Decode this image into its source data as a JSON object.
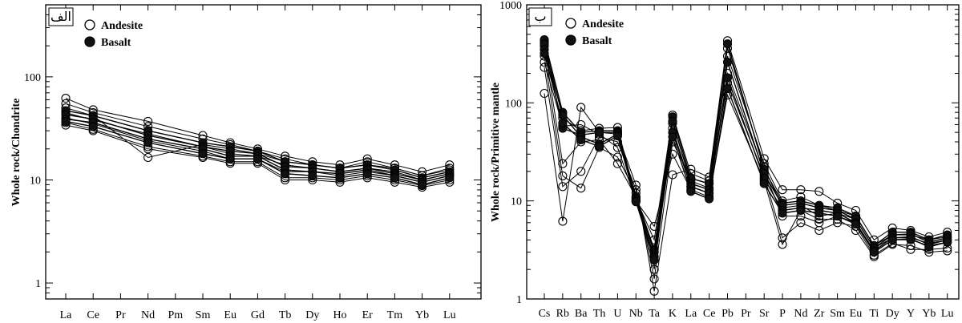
{
  "chart_data": [
    {
      "type": "line",
      "panel_tag": "الف",
      "ylabel": "Whole rock/Chondrite",
      "xlabel": "",
      "y_scale": "log",
      "ylim": [
        0.7,
        500
      ],
      "y_ticks": [
        1,
        10,
        100
      ],
      "y_tick_labels": [
        "1",
        "10",
        "100"
      ],
      "categories": [
        "La",
        "Ce",
        "Pr",
        "Nd",
        "Pm",
        "Sm",
        "Eu",
        "Gd",
        "Tb",
        "Dy",
        "Ho",
        "Er",
        "Tm",
        "Yb",
        "Lu"
      ],
      "legend": [
        {
          "label": "Andesite",
          "marker": "open-circle"
        },
        {
          "label": "Basalt",
          "marker": "filled-circle"
        }
      ],
      "legend_position": "top-left",
      "series": [
        {
          "group": "Andesite",
          "values": [
            62,
            48,
            null,
            37,
            null,
            27,
            23,
            20,
            17,
            15,
            14,
            16,
            14,
            12,
            14
          ]
        },
        {
          "group": "Andesite",
          "values": [
            55,
            45,
            null,
            33,
            null,
            25,
            22,
            19,
            16,
            14,
            13,
            15,
            13,
            11,
            13
          ]
        },
        {
          "group": "Andesite",
          "values": [
            50,
            42,
            null,
            16.5,
            null,
            22,
            20,
            18,
            15,
            14,
            13,
            14,
            13,
            11,
            12.5
          ]
        },
        {
          "group": "Andesite",
          "values": [
            45,
            38,
            null,
            28,
            null,
            21,
            18,
            17,
            14,
            13,
            12,
            13,
            12,
            10,
            11.5
          ]
        },
        {
          "group": "Andesite",
          "values": [
            40,
            35,
            null,
            24,
            null,
            19,
            16,
            16,
            12,
            12,
            11,
            12,
            11,
            9.5,
            11
          ]
        },
        {
          "group": "Andesite",
          "values": [
            36,
            31,
            null,
            21,
            null,
            17,
            15,
            15,
            10.5,
            10.5,
            10,
            11,
            10,
            8.8,
            10
          ]
        },
        {
          "group": "Andesite",
          "values": [
            34,
            30,
            null,
            20,
            null,
            16.5,
            14.5,
            14.5,
            10,
            10,
            9.5,
            10.5,
            9.5,
            8.5,
            9.5
          ]
        },
        {
          "group": "Basalt",
          "values": [
            47,
            42,
            null,
            30,
            null,
            23,
            21,
            19,
            15,
            14,
            13,
            14,
            12.5,
            10.5,
            12
          ]
        },
        {
          "group": "Basalt",
          "values": [
            43,
            39,
            null,
            27,
            null,
            21,
            19,
            18,
            13.5,
            13,
            12,
            13,
            11.5,
            10,
            11.5
          ]
        },
        {
          "group": "Basalt",
          "values": [
            39,
            36,
            null,
            25,
            null,
            20,
            17,
            17,
            12.5,
            12,
            11.5,
            12.5,
            11,
            9.5,
            11
          ]
        },
        {
          "group": "Basalt",
          "values": [
            37,
            33,
            null,
            23,
            null,
            18,
            16,
            16,
            11.5,
            11,
            10.5,
            11.5,
            10.5,
            9,
            10.5
          ]
        }
      ]
    },
    {
      "type": "line",
      "panel_tag": "ب",
      "ylabel": "Whole rock/Primitive mantle",
      "xlabel": "",
      "y_scale": "log",
      "ylim": [
        1,
        1000
      ],
      "y_ticks": [
        1,
        10,
        100,
        1000
      ],
      "y_tick_labels": [
        "1",
        "10",
        "100",
        "1000"
      ],
      "categories": [
        "Cs",
        "Rb",
        "Ba",
        "Th",
        "U",
        "Nb",
        "Ta",
        "K",
        "La",
        "Ce",
        "Pb",
        "Pr",
        "Sr",
        "P",
        "Nd",
        "Zr",
        "Sm",
        "Eu",
        "Ti",
        "Dy",
        "Y",
        "Yb",
        "Lu"
      ],
      "legend": [
        {
          "label": "Andesite",
          "marker": "open-circle"
        },
        {
          "label": "Basalt",
          "marker": "filled-circle"
        }
      ],
      "legend_position": "top-left",
      "series": [
        {
          "group": "Andesite",
          "values": [
            125,
            6.2,
            90,
            50,
            48,
            14.5,
            1.2,
            18.5,
            21,
            17.5,
            430,
            null,
            27,
            13,
            13,
            12.5,
            9.5,
            8,
            4,
            5.3,
            5,
            4.3,
            4.8
          ]
        },
        {
          "group": "Andesite",
          "values": [
            230,
            14,
            20,
            45,
            40,
            13,
            1.6,
            40,
            17,
            15,
            300,
            null,
            24,
            10,
            11,
            9,
            8,
            7,
            3.5,
            4.5,
            4.5,
            4,
            4.3
          ]
        },
        {
          "group": "Andesite",
          "values": [
            300,
            18,
            13.5,
            35,
            28,
            12,
            2,
            55,
            14,
            12,
            200,
            null,
            20,
            7,
            7,
            6,
            7,
            6,
            3,
            4,
            4,
            3.5,
            3.8
          ]
        },
        {
          "group": "Andesite",
          "values": [
            380,
            24,
            40,
            42,
            24,
            11,
            2.5,
            62,
            16,
            13.5,
            160,
            null,
            18,
            4.2,
            6,
            5,
            6,
            5.5,
            2.8,
            3.7,
            3.2,
            3.2,
            3.3
          ]
        },
        {
          "group": "Andesite",
          "values": [
            260,
            58,
            60,
            48,
            35,
            10,
            5.5,
            30,
            13,
            11,
            120,
            null,
            16,
            3.6,
            8,
            6.5,
            6.5,
            5,
            2.7,
            3.6,
            3.5,
            3,
            3.1
          ]
        },
        {
          "group": "Andesite",
          "values": [
            420,
            70,
            52,
            55,
            56,
            10.5,
            4,
            75,
            19,
            16,
            360,
            null,
            22,
            8.5,
            9,
            7,
            7.5,
            6.5,
            3.3,
            4.2,
            4.2,
            3.7,
            4
          ]
        },
        {
          "group": "Basalt",
          "values": [
            440,
            80,
            50,
            52,
            52,
            11,
            3.2,
            72,
            17,
            15,
            400,
            null,
            21,
            9.5,
            10,
            9,
            8.5,
            7,
            3.5,
            4.8,
            4.8,
            4,
            4.5
          ]
        },
        {
          "group": "Basalt",
          "values": [
            400,
            55,
            47,
            50,
            50,
            10.5,
            3,
            65,
            15,
            13,
            260,
            null,
            19,
            9,
            9.5,
            8.5,
            8,
            6.5,
            3.3,
            4.5,
            4.6,
            3.8,
            4.2
          ]
        },
        {
          "group": "Basalt",
          "values": [
            350,
            75,
            45,
            38,
            48,
            10,
            2.7,
            50,
            14,
            12,
            180,
            null,
            17,
            8,
            8.5,
            8,
            7.5,
            6,
            3.1,
            4.2,
            4.3,
            3.6,
            4
          ]
        },
        {
          "group": "Basalt",
          "values": [
            320,
            62,
            42,
            36,
            46,
            9.8,
            2.5,
            45,
            12.5,
            10.5,
            140,
            null,
            15,
            7.5,
            8,
            7.5,
            7,
            5.8,
            3,
            4,
            4.1,
            3.4,
            3.8
          ]
        }
      ]
    }
  ]
}
